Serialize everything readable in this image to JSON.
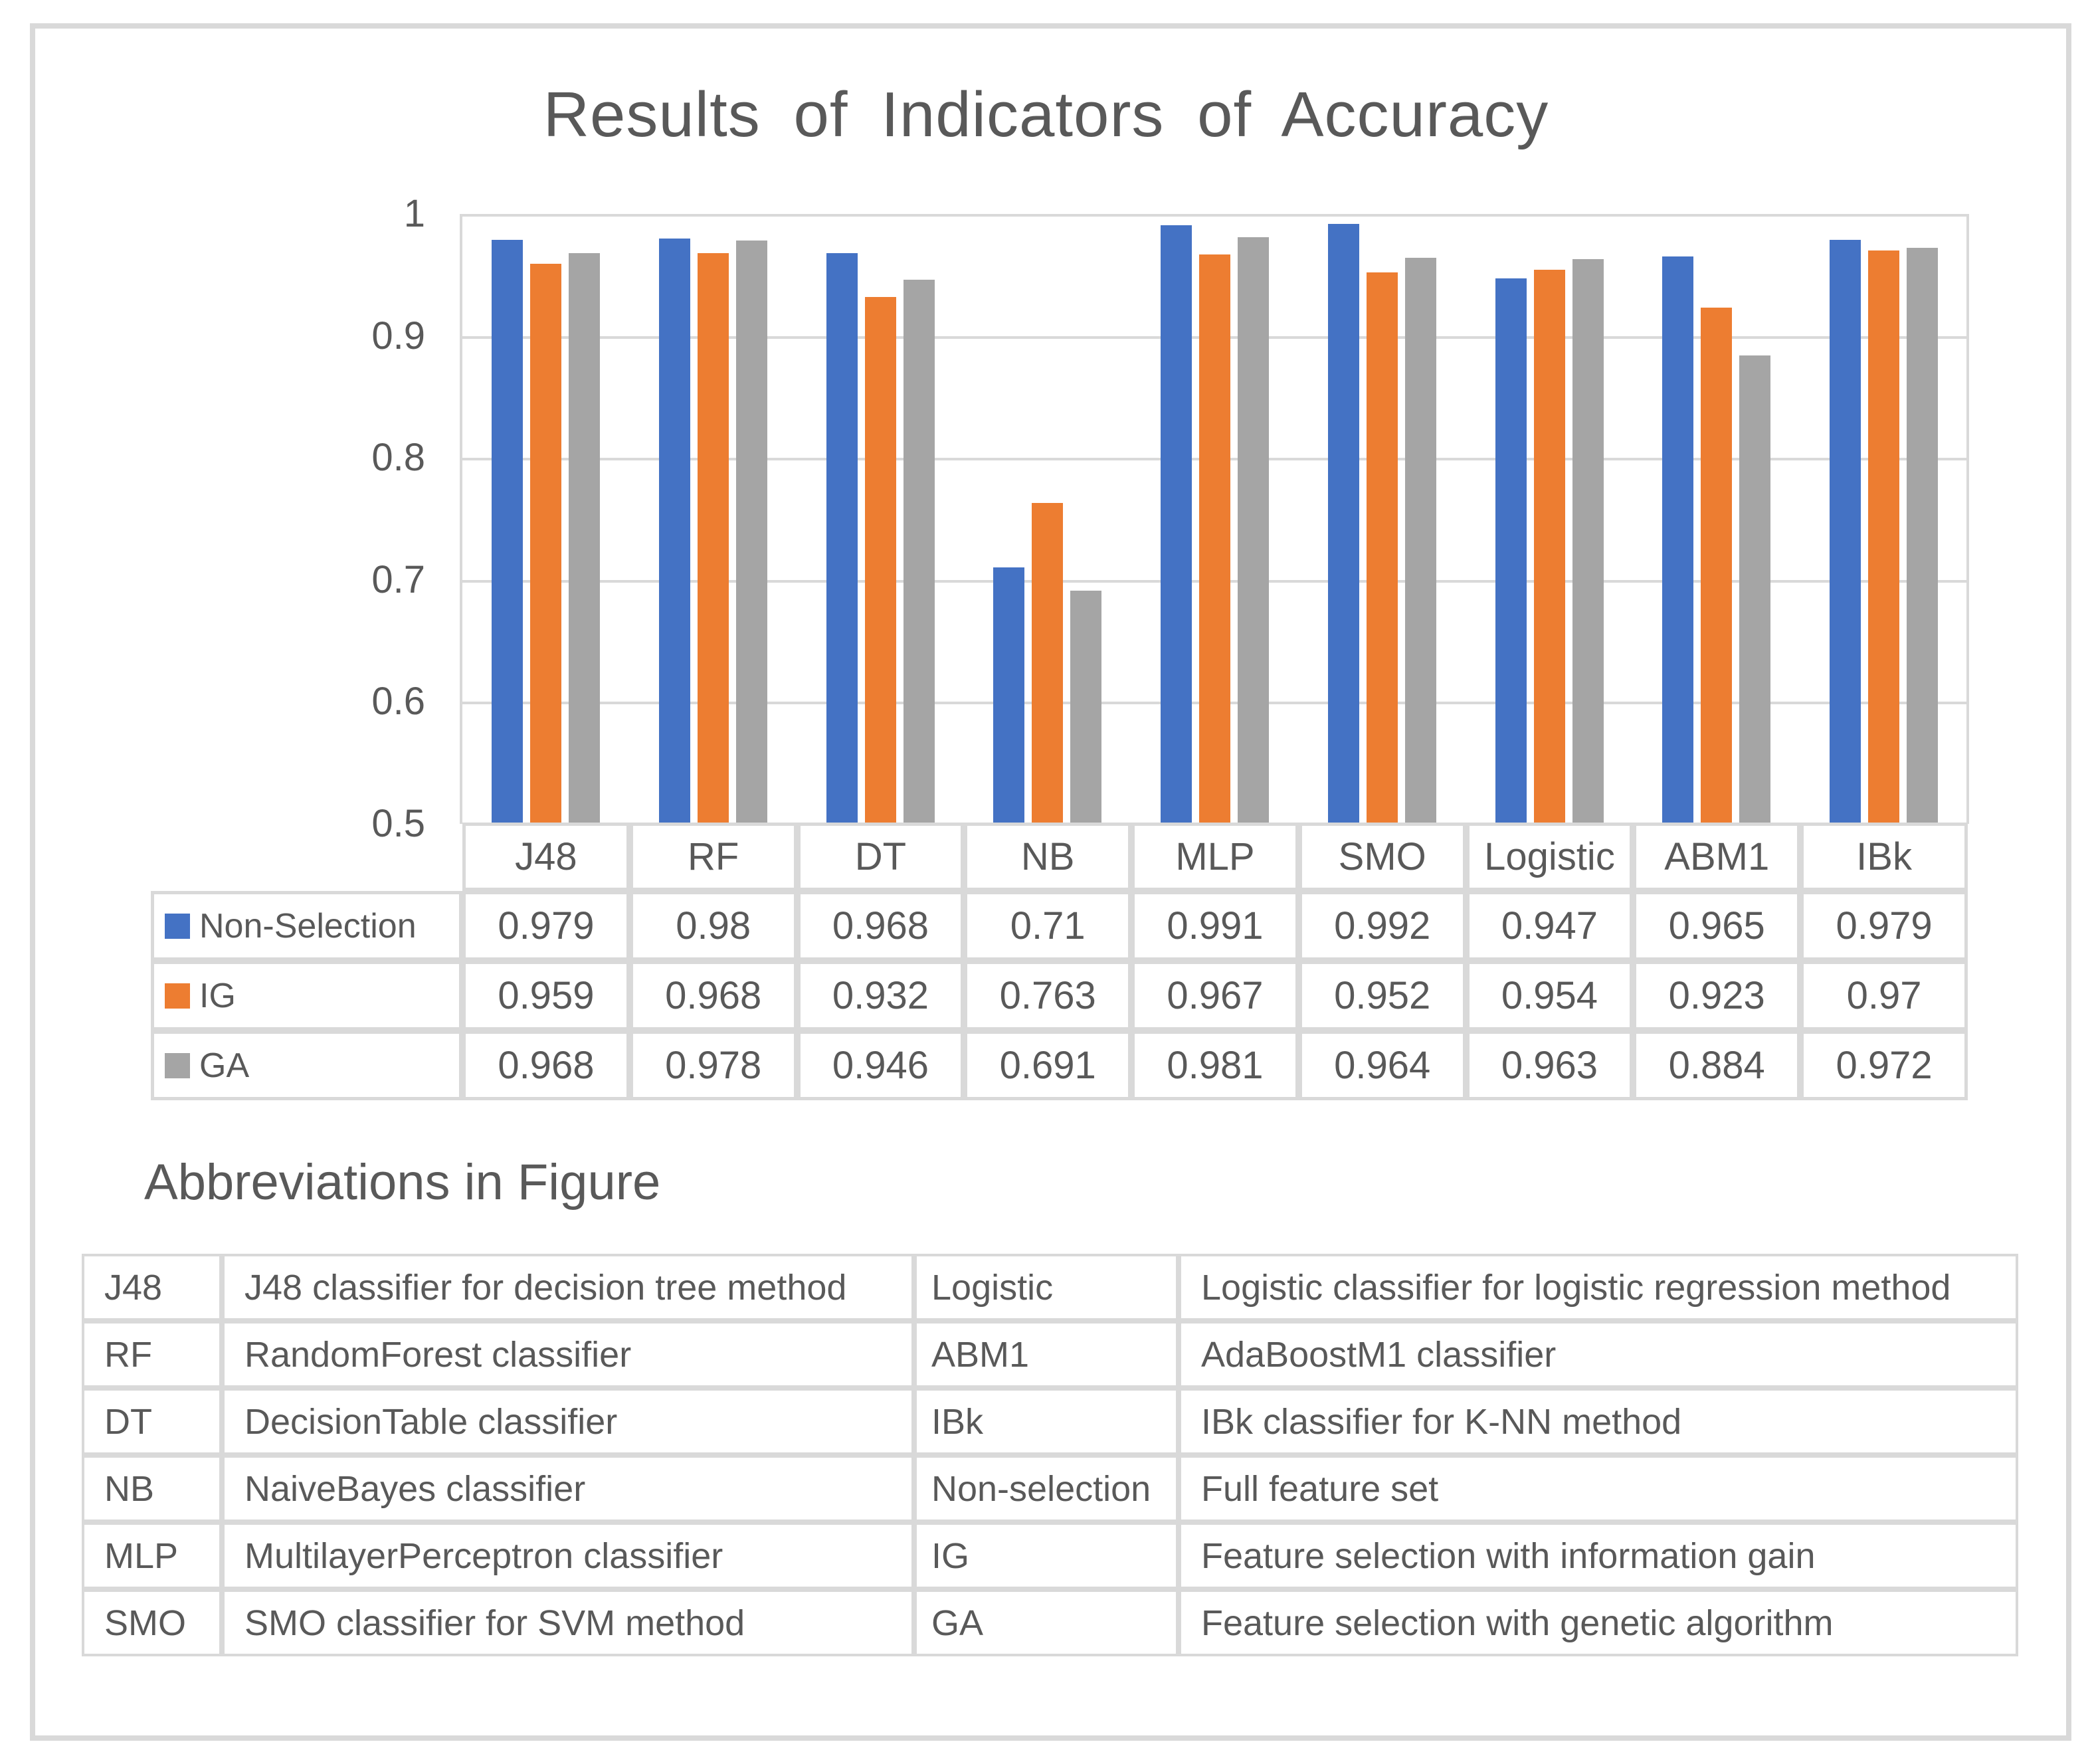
{
  "title": "Results of Indicators of Accuracy",
  "chart_data": {
    "type": "bar",
    "title": "Results of Indicators of Accuracy",
    "categories": [
      "J48",
      "RF",
      "DT",
      "NB",
      "MLP",
      "SMO",
      "Logistic",
      "ABM1",
      "IBk"
    ],
    "series": [
      {
        "name": "Non-Selection",
        "color": "#4472C4",
        "values": [
          "0.979",
          "0.98",
          "0.968",
          "0.71",
          "0.991",
          "0.992",
          "0.947",
          "0.965",
          "0.979"
        ]
      },
      {
        "name": "IG",
        "color": "#ED7D31",
        "values": [
          "0.959",
          "0.968",
          "0.932",
          "0.763",
          "0.967",
          "0.952",
          "0.954",
          "0.923",
          "0.97"
        ]
      },
      {
        "name": "GA",
        "color": "#A5A5A5",
        "values": [
          "0.968",
          "0.978",
          "0.946",
          "0.691",
          "0.981",
          "0.964",
          "0.963",
          "0.884",
          "0.972"
        ]
      }
    ],
    "ylim": [
      0.5,
      1.0
    ],
    "ytick_labels": [
      "1",
      "0.9",
      "0.8",
      "0.7",
      "0.6",
      "0.5"
    ],
    "grid": true,
    "legend_position": "table-left",
    "gridline_color": "#D9D9D9",
    "text_color": "#595959"
  },
  "abbreviations": {
    "heading": "Abbreviations in Figure",
    "rows": [
      {
        "abbr1": "J48",
        "desc1": "J48 classifier for decision tree method",
        "abbr2": "Logistic",
        "desc2": "Logistic classifier for logistic regression method"
      },
      {
        "abbr1": "RF",
        "desc1": "RandomForest classifier",
        "abbr2": "ABM1",
        "desc2": "AdaBoostM1 classifier"
      },
      {
        "abbr1": "DT",
        "desc1": "DecisionTable classifier",
        "abbr2": "IBk",
        "desc2": "IBk classifier for K-NN method"
      },
      {
        "abbr1": "NB",
        "desc1": "NaiveBayes classifier",
        "abbr2": "Non-selection",
        "desc2": "Full feature set"
      },
      {
        "abbr1": "MLP",
        "desc1": "MultilayerPerceptron classifier",
        "abbr2": "IG",
        "desc2": "Feature selection with information gain"
      },
      {
        "abbr1": "SMO",
        "desc1": "SMO classifier for SVM method",
        "abbr2": "GA",
        "desc2": "Feature selection with genetic algorithm"
      }
    ]
  }
}
